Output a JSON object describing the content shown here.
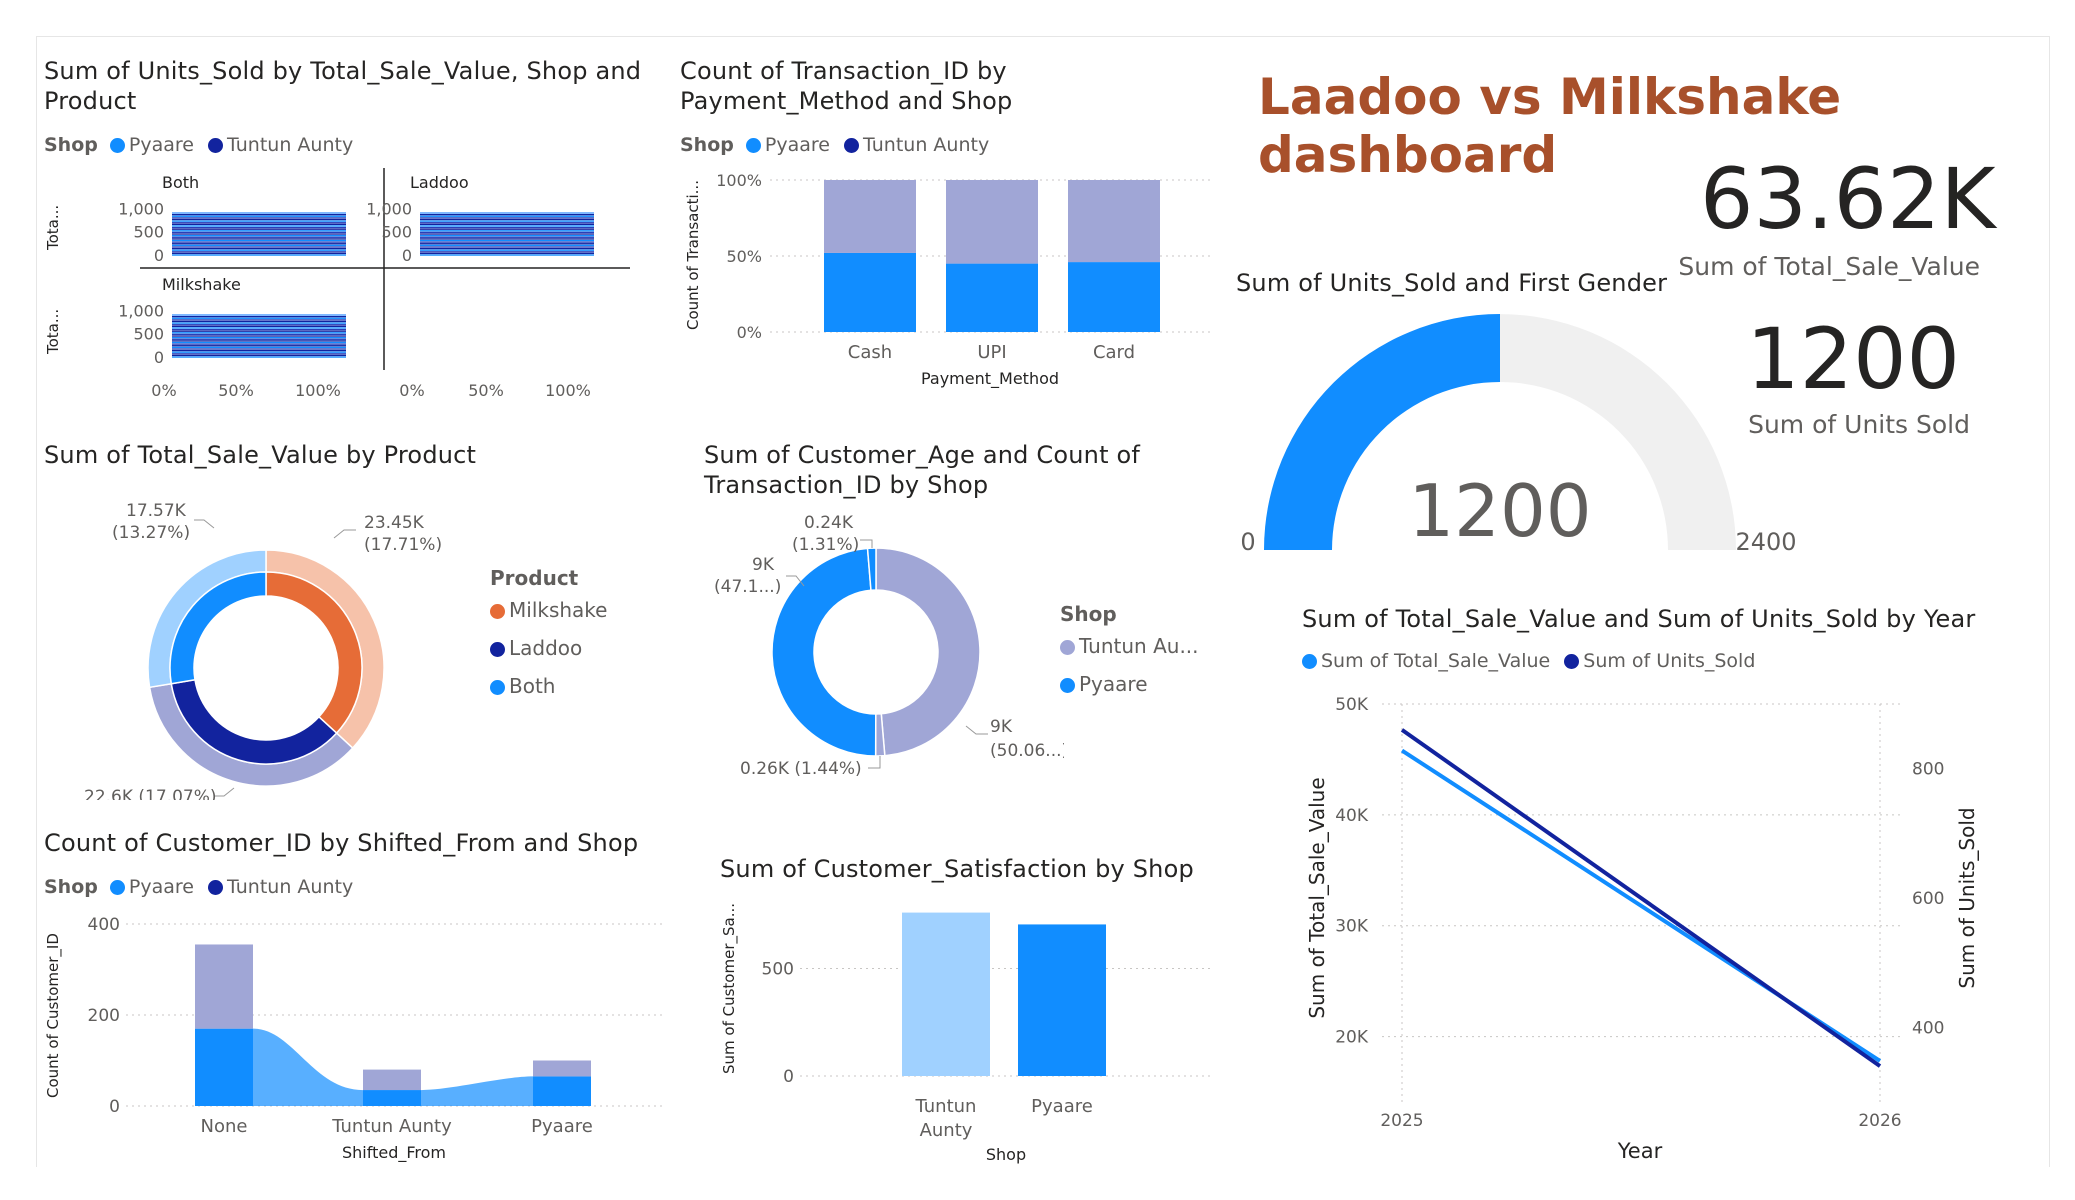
{
  "dashboard_title": "Laadoo vs Milkshake dashboard",
  "colors": {
    "pyaare": "#118dff",
    "tuntun": "#12239e",
    "tuntun_light": "#a0a6d6",
    "title": "#a8502b",
    "gauge_bg": "#f0f0f0"
  },
  "legend_shop": {
    "label": "Shop",
    "items": [
      "Pyaare",
      "Tuntun Aunty"
    ]
  },
  "kpi1": {
    "value": "63.62K",
    "label": "Sum of Total_Sale_Value"
  },
  "kpi2": {
    "value": "1200",
    "label": "Sum of Units Sold"
  },
  "chart_data": [
    {
      "id": "units_small_multiples",
      "type": "bar",
      "title": "Sum of Units_Sold by Total_Sale_Value, Shop and Product",
      "panels": [
        "Both",
        "Laddoo",
        "Milkshake"
      ],
      "ylabel": "Tota...",
      "yticks": [
        "1,000",
        "500",
        "0"
      ],
      "xticks": [
        "0%",
        "50%",
        "100%"
      ],
      "ylim": [
        0,
        1200
      ],
      "stack_max": 900
    },
    {
      "id": "payment_method",
      "type": "bar",
      "title": "Count of Transaction_ID by Payment_Method and Shop",
      "categories": [
        "Cash",
        "UPI",
        "Card"
      ],
      "series": [
        {
          "name": "Pyaare",
          "values": [
            52,
            45,
            46
          ]
        },
        {
          "name": "Tuntun Aunty",
          "values": [
            48,
            55,
            54
          ]
        }
      ],
      "xlabel": "Payment_Method",
      "ylabel": "Count of Transacti...",
      "yticks": [
        "100%",
        "50%",
        "0%"
      ],
      "ylim": [
        0,
        100
      ]
    },
    {
      "id": "gauge",
      "type": "gauge",
      "title": "Sum of Units_Sold and First Gender",
      "value": 1200,
      "value_label": "1200",
      "min": 0,
      "min_label": "0",
      "max": 2400,
      "max_label": "2400"
    },
    {
      "id": "sale_by_product",
      "type": "pie",
      "title": "Sum of Total_Sale_Value by Product",
      "legend_title": "Product",
      "categories": [
        "Milkshake",
        "Laddoo",
        "Both"
      ],
      "colors": [
        "#e66c37",
        "#12239e",
        "#118dff"
      ],
      "outer_colors": [
        "#f6c2aa",
        "#a0a6d6",
        "#a0d1ff"
      ],
      "values": [
        23.45,
        22.6,
        17.57
      ],
      "labels": [
        [
          "23.45K",
          "(17.71%)"
        ],
        [
          "22.6K (17.07%)"
        ],
        [
          "17.57K",
          "(13.27%)"
        ]
      ]
    },
    {
      "id": "age_by_shop",
      "type": "pie",
      "title": "Sum of Customer_Age and Count of Transaction_ID by Shop",
      "legend_title": "Shop",
      "legend_items": [
        "Tuntun Au...",
        "Pyaare"
      ],
      "legend_colors": [
        "#a0a6d6",
        "#118dff"
      ],
      "slices": [
        {
          "shop": "Tuntun Aunty",
          "value": 9,
          "color": "#a0a6d6",
          "label": [
            "9K",
            "(50.06...)"
          ]
        },
        {
          "shop": "Tuntun Aunty",
          "value": 0.26,
          "color": "#a0a6d6",
          "label": [
            "0.26K (1.44%)"
          ]
        },
        {
          "shop": "Pyaare",
          "value": 9,
          "color": "#118dff",
          "label": [
            "9K",
            "(47.1...)"
          ]
        },
        {
          "shop": "Pyaare",
          "value": 0.24,
          "color": "#118dff",
          "label": [
            "0.24K",
            "(1.31%)"
          ]
        }
      ]
    },
    {
      "id": "shifted_from",
      "type": "bar",
      "title": "Count of Customer_ID by Shifted_From and Shop",
      "categories": [
        "None",
        "Tuntun Aunty",
        "Pyaare"
      ],
      "series": [
        {
          "name": "Pyaare",
          "values": [
            170,
            35,
            65
          ]
        },
        {
          "name": "Tuntun Aunty",
          "values": [
            185,
            45,
            35
          ]
        }
      ],
      "xlabel": "Shifted_From",
      "ylabel": "Count of Customer_ID",
      "yticks": [
        0,
        200,
        400
      ],
      "ylim": [
        0,
        400
      ]
    },
    {
      "id": "satisfaction",
      "type": "bar",
      "title": "Sum of Customer_Satisfaction by Shop",
      "categories": [
        [
          "Tuntun",
          "Aunty"
        ],
        [
          "Pyaare"
        ]
      ],
      "values": [
        760,
        705
      ],
      "colors": [
        "#a0d1ff",
        "#118dff"
      ],
      "xlabel": "Shop",
      "ylabel": "Sum of Customer_Sa...",
      "yticks": [
        0,
        500
      ],
      "ylim": [
        0,
        800
      ]
    },
    {
      "id": "by_year",
      "type": "line",
      "title": "Sum of Total_Sale_Value and Sum of Units_Sold by Year",
      "x": [
        2025,
        2026
      ],
      "xlabel": "Year",
      "series": [
        {
          "name": "Sum of Total_Sale_Value",
          "values": [
            45800,
            17800
          ],
          "axis": "left",
          "color": "#118dff"
        },
        {
          "name": "Sum of Units_Sold",
          "values": [
            860,
            340
          ],
          "axis": "right",
          "color": "#12239e"
        }
      ],
      "ylabel_left": "Sum of Total_Sale_Value",
      "ylabel_right": "Sum of Units_Sold",
      "yticks_left": [
        "50K",
        "40K",
        "30K",
        "20K"
      ],
      "yticks_left_values": [
        50000,
        40000,
        30000,
        20000
      ],
      "ylim_left": [
        15000,
        50000
      ],
      "yticks_right": [
        "800",
        "600",
        "400"
      ],
      "yticks_right_values": [
        800,
        600,
        400
      ],
      "ylim_right": [
        300,
        900
      ]
    }
  ]
}
